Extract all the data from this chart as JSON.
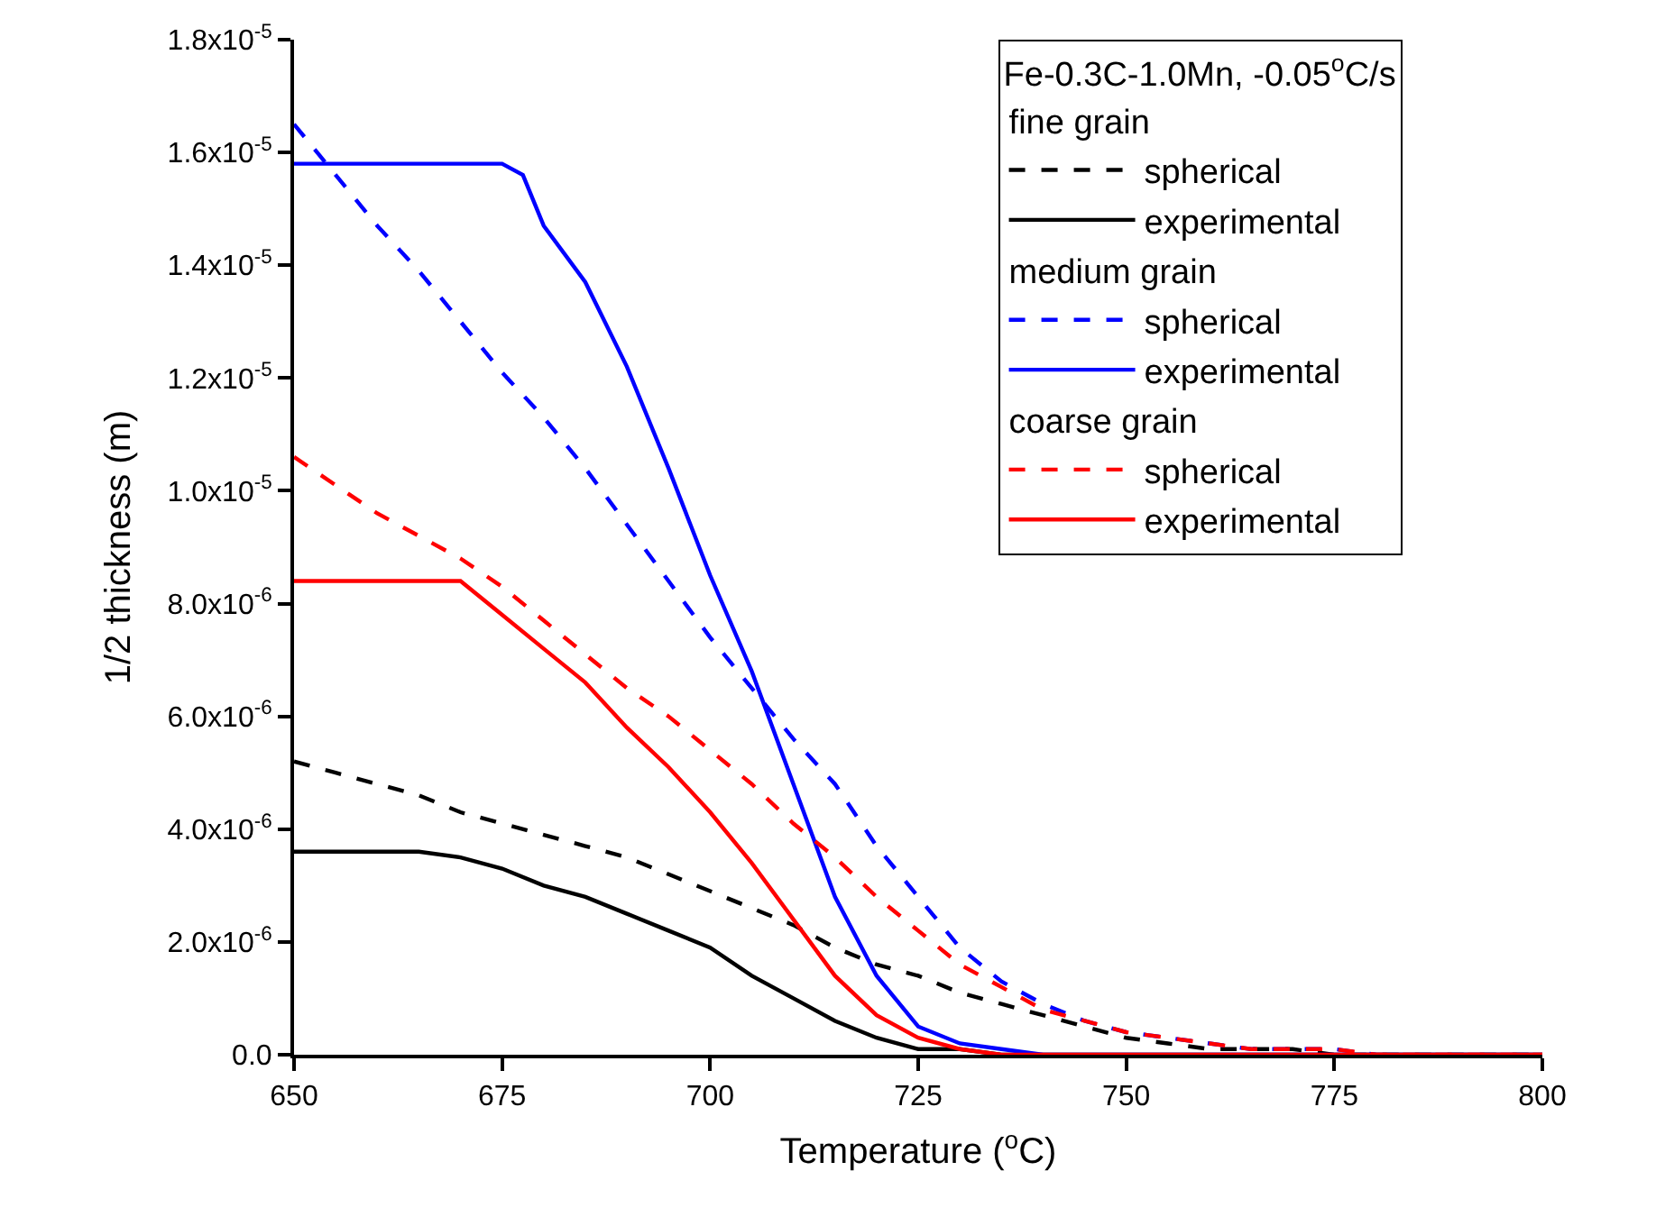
{
  "chart_data": {
    "type": "line",
    "xlabel": "Temperature ($^{o}$C)",
    "ylabel": "1/2 thickness (m)",
    "legend_title": "Fe-0.3C-1.0Mn, -0.05$^{o}$C/s",
    "annotations": [
      "fine grain",
      "medium grain",
      "coarse grain"
    ],
    "x": [
      650,
      655,
      660,
      665,
      670,
      675,
      680,
      685,
      690,
      695,
      700,
      705,
      710,
      715,
      720,
      725,
      730,
      735,
      740,
      745,
      750,
      755,
      760,
      765,
      770,
      775,
      780,
      790,
      800
    ],
    "series": [
      {
        "name": "spherical",
        "color": "#000000",
        "line_style": "dashed",
        "values": [
          5.2e-06,
          5e-06,
          4.8e-06,
          4.6e-06,
          4.3e-06,
          4.1e-06,
          3.9e-06,
          3.7e-06,
          3.5e-06,
          3.2e-06,
          2.9e-06,
          2.6e-06,
          2.3e-06,
          1.9e-06,
          1.6e-06,
          1.4e-06,
          1.1e-06,
          9e-07,
          7e-07,
          5e-07,
          3e-07,
          2e-07,
          1e-07,
          1e-07,
          1e-07,
          0,
          0,
          0,
          0
        ]
      },
      {
        "name": "experimental",
        "color": "#000000",
        "line_style": "solid",
        "values": [
          3.6e-06,
          3.6e-06,
          3.6e-06,
          3.6e-06,
          3.5e-06,
          3.3e-06,
          3e-06,
          2.8e-06,
          2.5e-06,
          2.2e-06,
          1.9e-06,
          1.4e-06,
          1e-06,
          6e-07,
          3e-07,
          1e-07,
          1e-07,
          0,
          0,
          0,
          0,
          0,
          0,
          0,
          0,
          0,
          0,
          0,
          0
        ]
      },
      {
        "name": "spherical",
        "color": "#0000ff",
        "line_style": "dashed",
        "values": [
          1.65e-05,
          1.56e-05,
          1.47e-05,
          1.39e-05,
          1.3e-05,
          1.21e-05,
          1.13e-05,
          1.04e-05,
          9.4e-06,
          8.4e-06,
          7.4e-06,
          6.5e-06,
          5.6e-06,
          4.8e-06,
          3.7e-06,
          2.8e-06,
          1.9e-06,
          1.3e-06,
          9e-07,
          6e-07,
          4e-07,
          3e-07,
          2e-07,
          1e-07,
          1e-07,
          1e-07,
          0,
          null,
          null
        ]
      },
      {
        "name": "experimental",
        "color": "#0000ff",
        "line_style": "solid",
        "x": [
          650,
          655,
          660,
          665,
          670,
          675,
          677.5,
          680,
          685,
          690,
          695,
          700,
          705,
          710,
          715,
          720,
          725,
          730,
          735,
          740,
          750,
          760,
          770,
          780,
          790,
          800
        ],
        "values": [
          1.58e-05,
          1.58e-05,
          1.58e-05,
          1.58e-05,
          1.58e-05,
          1.58e-05,
          1.56e-05,
          1.47e-05,
          1.37e-05,
          1.22e-05,
          1.04e-05,
          8.5e-06,
          6.8e-06,
          4.8e-06,
          2.8e-06,
          1.4e-06,
          5e-07,
          2e-07,
          1e-07,
          0,
          0,
          0,
          0,
          0,
          0,
          0
        ]
      },
      {
        "name": "spherical",
        "color": "#ff0000",
        "line_style": "dashed",
        "values": [
          1.06e-05,
          1.01e-05,
          9.6e-06,
          9.2e-06,
          8.8e-06,
          8.3e-06,
          7.7e-06,
          7.1e-06,
          6.5e-06,
          6e-06,
          5.4e-06,
          4.8e-06,
          4.1e-06,
          3.5e-06,
          2.8e-06,
          2.2e-06,
          1.6e-06,
          1.2e-06,
          8e-07,
          6e-07,
          4e-07,
          3e-07,
          2e-07,
          1e-07,
          1e-07,
          1e-07,
          0,
          0,
          0
        ]
      },
      {
        "name": "experimental",
        "color": "#ff0000",
        "line_style": "solid",
        "values": [
          8.4e-06,
          8.4e-06,
          8.4e-06,
          8.4e-06,
          8.4e-06,
          7.8e-06,
          7.2e-06,
          6.6e-06,
          5.8e-06,
          5.1e-06,
          4.3e-06,
          3.4e-06,
          2.4e-06,
          1.4e-06,
          7e-07,
          3e-07,
          1e-07,
          0,
          0,
          0,
          0,
          0,
          0,
          0,
          0,
          0,
          0,
          0,
          0
        ]
      }
    ],
    "xlim": [
      650,
      800
    ],
    "xticks": [
      650,
      675,
      700,
      725,
      750,
      775,
      800
    ],
    "ylim": [
      0,
      1.8e-05
    ],
    "yticks": [
      {
        "value": 0,
        "label": "0.0"
      },
      {
        "value": 2e-06,
        "label": "2.0x10$^{-6}$"
      },
      {
        "value": 4e-06,
        "label": "4.0x10$^{-6}$"
      },
      {
        "value": 6e-06,
        "label": "6.0x10$^{-6}$"
      },
      {
        "value": 8e-06,
        "label": "8.0x10$^{-6}$"
      },
      {
        "value": 1e-05,
        "label": "1.0x10$^{-5}$"
      },
      {
        "value": 1.2e-05,
        "label": "1.2x10$^{-5}$"
      },
      {
        "value": 1.4e-05,
        "label": "1.4x10$^{-5}$"
      },
      {
        "value": 1.6e-05,
        "label": "1.6x10$^{-5}$"
      },
      {
        "value": 1.8e-05,
        "label": "1.8x10$^{-5}$"
      }
    ],
    "legend": "top right"
  }
}
